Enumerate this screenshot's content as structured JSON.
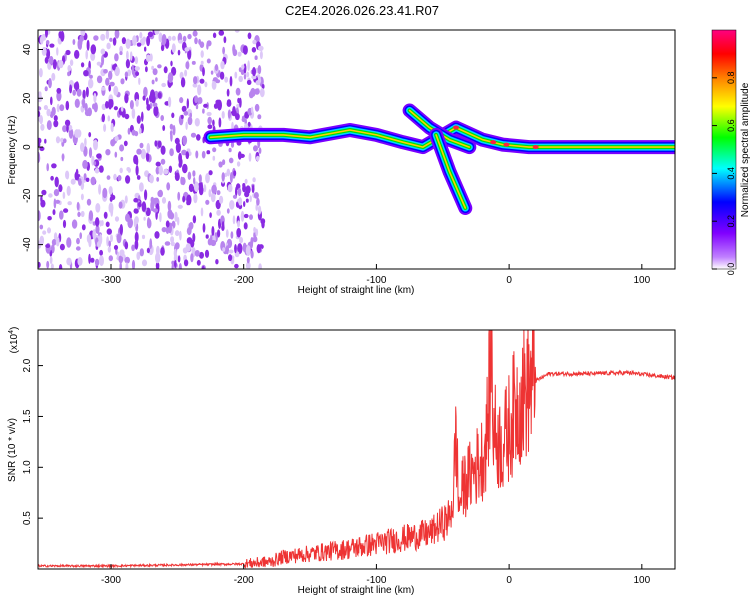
{
  "chart_data": [
    {
      "type": "heatmap",
      "title": "C2E4.2026.026.23.41.R07",
      "xlabel": "Height of straight line (km)",
      "ylabel": "Frequency (Hz)",
      "xlim": [
        -355,
        125
      ],
      "ylim": [
        -50,
        48
      ],
      "xticks": [
        -300,
        -200,
        -100,
        0,
        100
      ],
      "yticks": [
        -40,
        -20,
        0,
        20,
        40
      ],
      "colorbar": {
        "label": "Normalized spectral amplitude",
        "range": [
          0,
          1
        ],
        "ticks": [
          "0.0",
          "0.2",
          "0.4",
          "0.6",
          "0.8"
        ],
        "colormap": [
          "#ffffff",
          "#8000ff",
          "#0000ff",
          "#00ffff",
          "#00ff00",
          "#ffff00",
          "#ff8000",
          "#ff0000",
          "#ff0080"
        ]
      },
      "features": {
        "noise_region_x": [
          -355,
          -185
        ],
        "main_trace": [
          [
            -225,
            4
          ],
          [
            -200,
            5
          ],
          [
            -170,
            5
          ],
          [
            -150,
            4
          ],
          [
            -120,
            7
          ],
          [
            -100,
            5
          ],
          [
            -80,
            2
          ],
          [
            -65,
            0
          ],
          [
            -40,
            8
          ],
          [
            -20,
            3
          ],
          [
            -5,
            1
          ],
          [
            15,
            0
          ],
          [
            125,
            0
          ]
        ],
        "branch_upper": [
          [
            -75,
            15
          ],
          [
            -60,
            8
          ],
          [
            -45,
            3
          ],
          [
            -30,
            0
          ]
        ],
        "branch_lower": [
          [
            -55,
            5
          ],
          [
            -45,
            -10
          ],
          [
            -33,
            -25
          ]
        ]
      }
    },
    {
      "type": "line",
      "xlabel": "Height of straight line (km)",
      "ylabel": "SNR (10 * v/v)",
      "multiplier": "(x10",
      "multiplier_exp": "4",
      "multiplier_close": ")",
      "xlim": [
        -355,
        125
      ],
      "ylim": [
        0,
        2.35
      ],
      "xticks": [
        -300,
        -200,
        -100,
        0,
        100
      ],
      "yticks": [
        "0.5",
        "1.0",
        "1.5",
        "2.0"
      ],
      "line_color": "#ee3333",
      "x": [
        -355,
        -300,
        -250,
        -200,
        -180,
        -170,
        -150,
        -120,
        -100,
        -80,
        -60,
        -50,
        -45,
        -42,
        -40,
        -38,
        -35,
        -30,
        -25,
        -20,
        -17,
        -15,
        -13,
        -12,
        -10,
        -5,
        0,
        5,
        10,
        15,
        20,
        30,
        60,
        90,
        110,
        125
      ],
      "y": [
        0.03,
        0.03,
        0.04,
        0.05,
        0.07,
        0.12,
        0.15,
        0.2,
        0.25,
        0.3,
        0.35,
        0.45,
        0.5,
        0.7,
        1.4,
        0.6,
        0.8,
        0.9,
        1.0,
        1.1,
        1.3,
        1.7,
        2.3,
        1.4,
        1.3,
        1.2,
        1.4,
        1.6,
        1.7,
        1.8,
        1.85,
        1.92,
        1.92,
        1.93,
        1.9,
        1.88
      ]
    }
  ]
}
